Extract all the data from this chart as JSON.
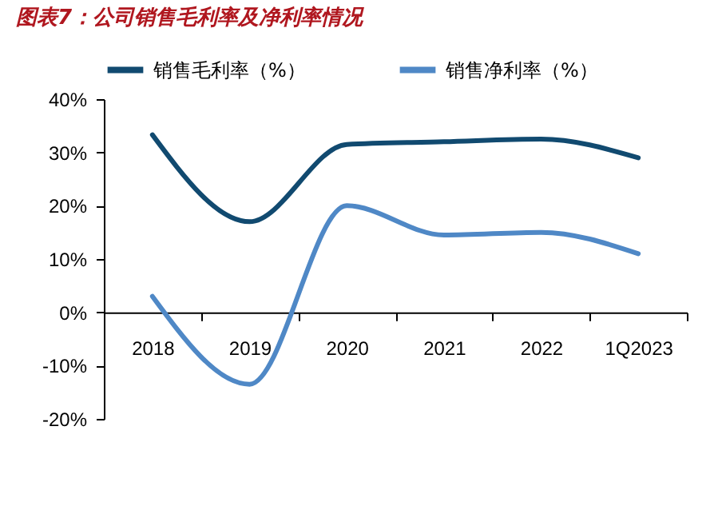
{
  "chart_data": {
    "type": "line",
    "title": "图表7：公司销售毛利率及净利率情况",
    "categories": [
      "2018",
      "2019",
      "2020",
      "2021",
      "2022",
      "1Q2023"
    ],
    "series": [
      {
        "name": "销售毛利率（%）",
        "color": "#114a70",
        "values": [
          33.3,
          17,
          31.5,
          32,
          32.5,
          29
        ]
      },
      {
        "name": "销售净利率（%）",
        "color": "#4f88c6",
        "values": [
          3,
          -13.5,
          20,
          14.5,
          15,
          11
        ]
      }
    ],
    "ylim": [
      -20,
      40
    ],
    "yticks": [
      {
        "value": -20,
        "label": "-20%"
      },
      {
        "value": -10,
        "label": "-10%"
      },
      {
        "value": 0,
        "label": "0%"
      },
      {
        "value": 10,
        "label": "10%"
      },
      {
        "value": 20,
        "label": "20%"
      },
      {
        "value": 30,
        "label": "30%"
      },
      {
        "value": 40,
        "label": "40%"
      }
    ],
    "grid": false,
    "legend": "top",
    "marker": "none",
    "line_style": "solid"
  }
}
